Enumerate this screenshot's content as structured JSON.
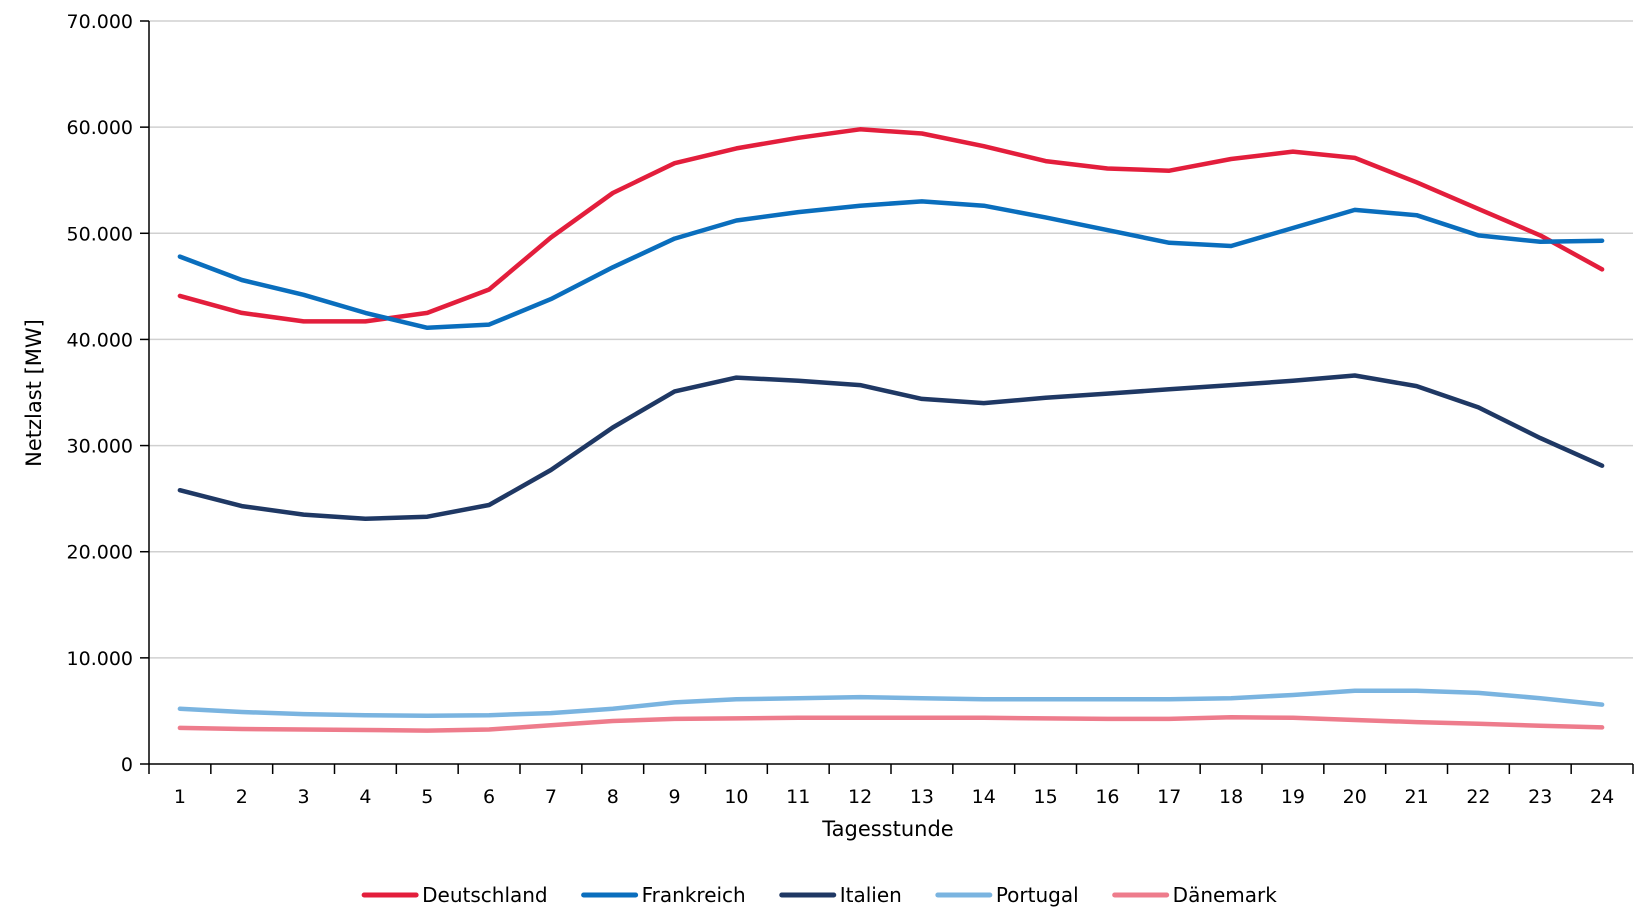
{
  "chart_data": {
    "type": "line",
    "title": "",
    "xlabel": "Tagesstunde",
    "ylabel": "Netzlast [MW]",
    "x": [
      1,
      2,
      3,
      4,
      5,
      6,
      7,
      8,
      9,
      10,
      11,
      12,
      13,
      14,
      15,
      16,
      17,
      18,
      19,
      20,
      21,
      22,
      23,
      24
    ],
    "x_tick_labels": [
      "1",
      "2",
      "3",
      "4",
      "5",
      "6",
      "7",
      "8",
      "9",
      "10",
      "11",
      "12",
      "13",
      "14",
      "15",
      "16",
      "17",
      "18",
      "19",
      "20",
      "21",
      "22",
      "23",
      "24"
    ],
    "ylim": [
      0,
      70000
    ],
    "y_ticks": [
      0,
      10000,
      20000,
      30000,
      40000,
      50000,
      60000,
      70000
    ],
    "y_tick_labels": [
      "0",
      "10.000",
      "20.000",
      "30.000",
      "40.000",
      "50.000",
      "60.000",
      "70.000"
    ],
    "grid": "horizontal",
    "legend_position": "bottom",
    "series": [
      {
        "name": "Deutschland",
        "color": "#e31e3c",
        "values": [
          44100,
          42500,
          41700,
          41700,
          42500,
          44700,
          49600,
          53800,
          56600,
          58000,
          59000,
          59800,
          59400,
          58200,
          56800,
          56100,
          55900,
          57000,
          57700,
          57100,
          54800,
          52300,
          49800,
          46600
        ]
      },
      {
        "name": "Frankreich",
        "color": "#0a6ebd",
        "values": [
          47800,
          45600,
          44200,
          42500,
          41100,
          41400,
          43800,
          46800,
          49500,
          51200,
          52000,
          52600,
          53000,
          52600,
          51500,
          50300,
          49100,
          48800,
          50500,
          52200,
          51700,
          49800,
          49200,
          49300
        ]
      },
      {
        "name": "Italien",
        "color": "#1f3864",
        "values": [
          25800,
          24300,
          23500,
          23100,
          23300,
          24400,
          27700,
          31700,
          35100,
          36400,
          36100,
          35700,
          34400,
          34000,
          34500,
          34900,
          35300,
          35700,
          36100,
          36600,
          35600,
          33600,
          30700,
          28100
        ]
      },
      {
        "name": "Portugal",
        "color": "#7ab4e0",
        "values": [
          5200,
          4900,
          4700,
          4600,
          4550,
          4600,
          4800,
          5200,
          5800,
          6100,
          6200,
          6300,
          6200,
          6100,
          6100,
          6100,
          6100,
          6200,
          6500,
          6900,
          6900,
          6700,
          6200,
          5600
        ]
      },
      {
        "name": "Dänemark",
        "color": "#ee7c8c",
        "values": [
          3400,
          3300,
          3250,
          3200,
          3150,
          3250,
          3650,
          4050,
          4250,
          4300,
          4350,
          4350,
          4350,
          4350,
          4300,
          4250,
          4250,
          4400,
          4350,
          4150,
          3950,
          3800,
          3600,
          3450
        ]
      }
    ]
  }
}
